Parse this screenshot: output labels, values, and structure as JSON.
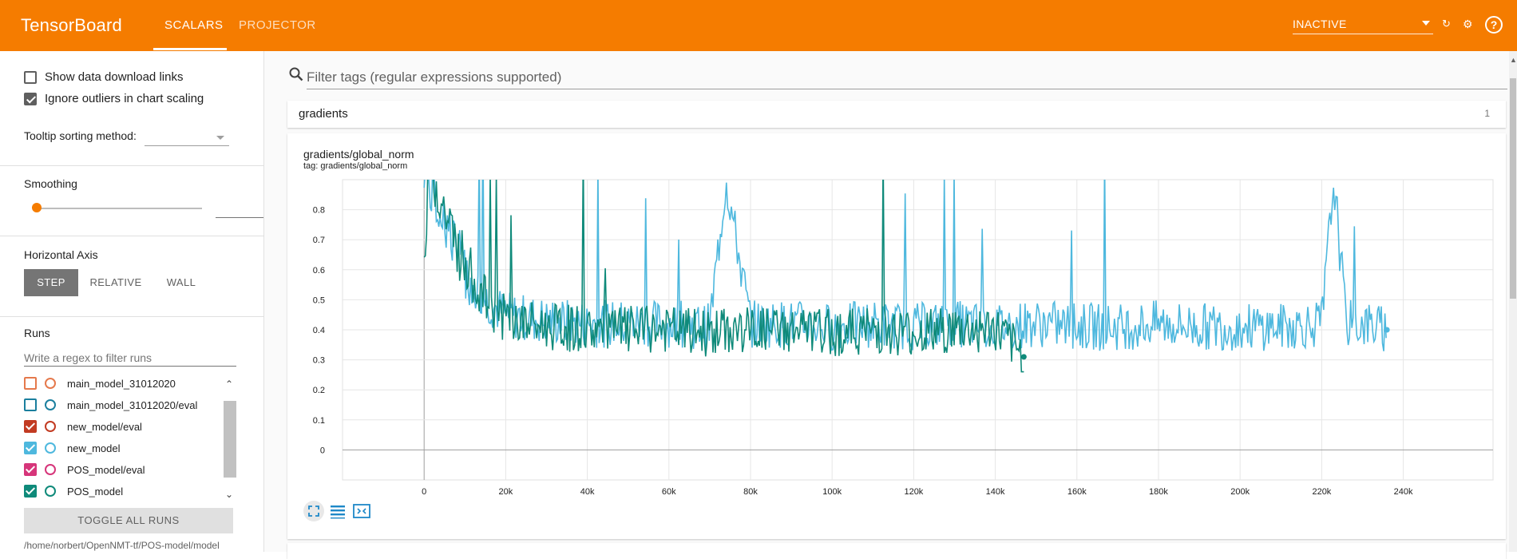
{
  "app": {
    "title": "TensorBoard"
  },
  "tabs": [
    {
      "label": "SCALARS",
      "active": true
    },
    {
      "label": "PROJECTOR",
      "active": false
    }
  ],
  "header": {
    "run_status": "INACTIVE",
    "icons": [
      "refresh-icon",
      "settings-icon",
      "help-icon"
    ]
  },
  "sidebar": {
    "show_download_links": {
      "label": "Show data download links",
      "checked": false
    },
    "ignore_outliers": {
      "label": "Ignore outliers in chart scaling",
      "checked": true
    },
    "tooltip_sorting": {
      "label": "Tooltip sorting method:",
      "value": ""
    },
    "smoothing": {
      "label": "Smoothing",
      "value": 0
    },
    "horizontal_axis": {
      "label": "Horizontal Axis",
      "options": [
        "STEP",
        "RELATIVE",
        "WALL"
      ],
      "selected": "STEP"
    },
    "runs": {
      "label": "Runs",
      "filter_placeholder": "Write a regex to filter runs",
      "items": [
        {
          "name": "main_model_31012020",
          "checked": false,
          "color": "#e5794c"
        },
        {
          "name": "main_model_31012020/eval",
          "checked": false,
          "color": "#1b7f9e"
        },
        {
          "name": "new_model/eval",
          "checked": true,
          "color": "#c23b22"
        },
        {
          "name": "new_model",
          "checked": true,
          "color": "#4eb8de"
        },
        {
          "name": "POS_model/eval",
          "checked": true,
          "color": "#d6357a"
        },
        {
          "name": "POS_model",
          "checked": true,
          "color": "#0f8a7a"
        }
      ],
      "toggle_label": "TOGGLE ALL RUNS",
      "logdir": "/home/norbert/OpenNMT-tf/POS-model/model"
    }
  },
  "main": {
    "filter_placeholder": "Filter tags (regular expressions supported)",
    "category": {
      "name": "gradients",
      "count": "1"
    },
    "chart": {
      "title": "gradients/global_norm",
      "tag": "tag: gradients/global_norm"
    }
  },
  "chart_data": {
    "type": "line",
    "title": "gradients/global_norm",
    "xlabel": "",
    "ylabel": "",
    "xlim": [
      -20000,
      262000
    ],
    "ylim": [
      -0.1,
      0.9
    ],
    "x_ticks": [
      0,
      20000,
      40000,
      60000,
      80000,
      100000,
      120000,
      140000,
      160000,
      180000,
      200000,
      220000,
      240000
    ],
    "x_tick_labels": [
      "0",
      "20k",
      "40k",
      "60k",
      "80k",
      "100k",
      "120k",
      "140k",
      "160k",
      "180k",
      "200k",
      "220k",
      "240k"
    ],
    "y_ticks": [
      0,
      0.1,
      0.2,
      0.3,
      0.4,
      0.5,
      0.6,
      0.7,
      0.8
    ],
    "y_tick_labels": [
      "0",
      "0.1",
      "0.2",
      "0.3",
      "0.4",
      "0.5",
      "0.6",
      "0.7",
      "0.8"
    ],
    "grid": true,
    "series": [
      {
        "name": "new_model",
        "color": "#4eb8de",
        "x": [
          0,
          2000,
          5000,
          8000,
          12000,
          16000,
          20000,
          30000,
          40000,
          50000,
          60000,
          70000,
          74000,
          80000,
          90000,
          100000,
          110000,
          120000,
          130000,
          140000,
          148000,
          152000,
          160000,
          170000,
          180000,
          190000,
          200000,
          210000,
          220000,
          223000,
          226000,
          230000,
          236000
        ],
        "y": [
          0.95,
          0.85,
          0.78,
          0.66,
          0.55,
          0.49,
          0.45,
          0.43,
          0.42,
          0.42,
          0.42,
          0.41,
          0.9,
          0.42,
          0.42,
          0.41,
          0.42,
          0.41,
          0.42,
          0.41,
          0.42,
          0.42,
          0.41,
          0.41,
          0.42,
          0.41,
          0.41,
          0.41,
          0.42,
          0.9,
          0.42,
          0.42,
          0.4
        ]
      },
      {
        "name": "POS_model",
        "color": "#0f8a7a",
        "x": [
          0,
          1000,
          3000,
          6000,
          10000,
          14000,
          18000,
          24000,
          30000,
          40000,
          50000,
          60000,
          70000,
          80000,
          90000,
          100000,
          110000,
          120000,
          130000,
          140000,
          147000
        ],
        "y": [
          0.6,
          0.95,
          0.88,
          0.75,
          0.62,
          0.52,
          0.45,
          0.42,
          0.41,
          0.4,
          0.4,
          0.4,
          0.39,
          0.4,
          0.4,
          0.39,
          0.4,
          0.39,
          0.4,
          0.4,
          0.31
        ]
      }
    ]
  }
}
